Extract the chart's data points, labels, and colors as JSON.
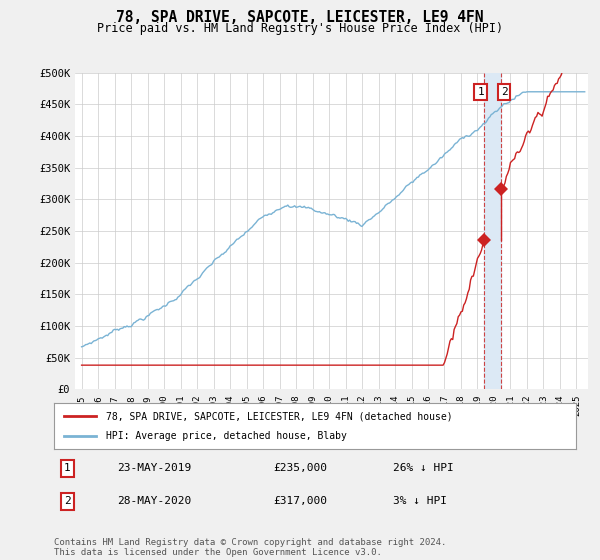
{
  "title": "78, SPA DRIVE, SAPCOTE, LEICESTER, LE9 4FN",
  "subtitle": "Price paid vs. HM Land Registry's House Price Index (HPI)",
  "ylim": [
    0,
    500000
  ],
  "yticks": [
    0,
    50000,
    100000,
    150000,
    200000,
    250000,
    300000,
    350000,
    400000,
    450000,
    500000
  ],
  "ytick_labels": [
    "£0",
    "£50K",
    "£100K",
    "£150K",
    "£200K",
    "£250K",
    "£300K",
    "£350K",
    "£400K",
    "£450K",
    "£500K"
  ],
  "hpi_color": "#7ab3d4",
  "price_color": "#cc2222",
  "sale1_year": 2019.388,
  "sale1_price": 235000,
  "sale2_year": 2020.408,
  "sale2_price": 317000,
  "sale1_date": "23-MAY-2019",
  "sale1_pct": "26% ↓ HPI",
  "sale2_date": "28-MAY-2020",
  "sale2_pct": "3% ↓ HPI",
  "legend_label1": "78, SPA DRIVE, SAPCOTE, LEICESTER, LE9 4FN (detached house)",
  "legend_label2": "HPI: Average price, detached house, Blaby",
  "footnote": "Contains HM Land Registry data © Crown copyright and database right 2024.\nThis data is licensed under the Open Government Licence v3.0.",
  "background_color": "#f0f0f0",
  "plot_bg_color": "#ffffff",
  "shaded_color": "#dce9f5",
  "dashed_color": "#cc4444"
}
